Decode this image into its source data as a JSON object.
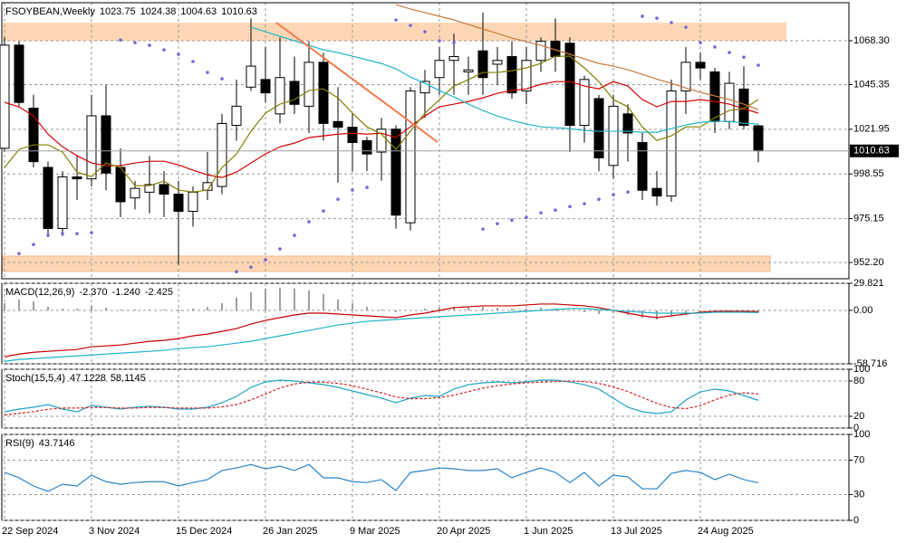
{
  "chart_data": [
    {
      "type": "candlestick",
      "title": "FSOYBEAN,Weekly",
      "categories": [
        "22 Sep 2024",
        null,
        null,
        null,
        null,
        null,
        "3 Nov 2024",
        null,
        null,
        null,
        null,
        null,
        "15 Dec 2024",
        null,
        null,
        null,
        null,
        null,
        "26 Jan 2025",
        null,
        null,
        null,
        null,
        null,
        "9 Mar 2025",
        null,
        null,
        null,
        null,
        null,
        "20 Apr 2025",
        null,
        null,
        null,
        null,
        null,
        "1 Jun 2025",
        null,
        null,
        null,
        null,
        null,
        "13 Jul 2025",
        null,
        null,
        null,
        null,
        null,
        "24 Aug 2025",
        null,
        null,
        null,
        null
      ],
      "open": [
        1012,
        1066,
        1033,
        1002,
        970,
        997,
        996,
        1029,
        1002,
        986,
        989,
        993,
        988,
        979,
        990,
        992,
        1024,
        1044,
        1048,
        1030,
        1047,
        1034,
        1057,
        1026,
        1023,
        1016,
        1010,
        1022,
        973,
        1041,
        1049,
        1058,
        1052,
        1063,
        1056,
        1060,
        1042,
        1058,
        1068,
        1067,
        1024,
        1038,
        1003,
        1030,
        1015,
        991,
        987,
        1042,
        1057,
        1052,
        1026,
        1043,
        1023.75
      ],
      "high": [
        1070,
        1068,
        1040,
        1005,
        1000,
        1008,
        1040,
        1045,
        1012,
        995,
        1008,
        1000,
        995,
        992,
        1010,
        1030,
        1048,
        1080,
        1065,
        1070,
        1060,
        1068,
        1062,
        1044,
        1030,
        1018,
        1028,
        1024,
        1044,
        1053,
        1065,
        1072,
        1060,
        1083,
        1065,
        1068,
        1065,
        1070,
        1080,
        1070,
        1050,
        1040,
        1040,
        1035,
        1020,
        1000,
        1048,
        1065,
        1062,
        1054,
        1052,
        1055,
        1024.38
      ],
      "low": [
        1010,
        1034,
        1002,
        967,
        966,
        985,
        992,
        990,
        976,
        980,
        978,
        976,
        951,
        971,
        985,
        988,
        1016,
        1042,
        1036,
        1025,
        1030,
        1020,
        1016,
        994,
        1000,
        1000,
        995,
        970,
        969,
        1028,
        1040,
        1040,
        1040,
        1040,
        1045,
        1038,
        1035,
        1052,
        1052,
        1010,
        1015,
        1000,
        996,
        1005,
        985,
        982,
        984,
        1030,
        1048,
        1020,
        1022,
        1022,
        1004.63
      ],
      "close": [
        1066,
        1036,
        1005,
        970,
        997,
        996,
        1029,
        999,
        984,
        991,
        993,
        988,
        979,
        989,
        994,
        1025,
        1034,
        1055,
        1041,
        1049,
        1035,
        1057,
        1025,
        1023,
        1015,
        1009,
        1022,
        977,
        1042,
        1047,
        1058,
        1060,
        1053,
        1049,
        1058,
        1041,
        1058,
        1068,
        1060,
        1024,
        1048,
        1007,
        1034,
        1020,
        990,
        987,
        1042,
        1057,
        1054,
        1026,
        1046,
        1024,
        1010.63
      ],
      "series": [
        {
          "style": "line",
          "color": "#d40000",
          "values": [
            1036.0,
            1033.7,
            1028.9,
            1019.4,
            1012.8,
            1008.1,
            1004.3,
            1002.9,
            1002.9,
            1004.3,
            1005.2,
            1005.2,
            1003.3,
            1000.5,
            998.1,
            996.7,
            999.5,
            1004.3,
            1009.0,
            1012.8,
            1014.7,
            1017.6,
            1018.5,
            1019.4,
            1019.9,
            1019.4,
            1019.9,
            1017.6,
            1023.2,
            1028.9,
            1033.7,
            1035.1,
            1036.5,
            1038.4,
            1040.8,
            1042.2,
            1043.1,
            1045.5,
            1046.9,
            1046.9,
            1044.6,
            1043.1,
            1046.9,
            1044.6,
            1037.5,
            1033.7,
            1036.5,
            1036.5,
            1037.5,
            1036.5,
            1035.1,
            1032.7,
            1030.4
          ]
        },
        {
          "style": "line",
          "color": "#808000",
          "values": [
            1001.9,
            1011.4,
            1013.8,
            1013.8,
            1010.0,
            999.5,
            997.2,
            1004.3,
            1001.9,
            992.4,
            992.4,
            994.8,
            990.1,
            989.1,
            990.1,
            1001.9,
            1009.0,
            1020.9,
            1030.4,
            1035.1,
            1037.5,
            1042.2,
            1043.1,
            1038.4,
            1030.4,
            1023.2,
            1019.4,
            1011.4,
            1020.9,
            1030.4,
            1037.5,
            1044.6,
            1047.9,
            1051.7,
            1051.7,
            1052.6,
            1054.1,
            1056.4,
            1060.2,
            1060.2,
            1054.1,
            1046.9,
            1037.5,
            1033.7,
            1023.2,
            1016.1,
            1018.5,
            1023.2,
            1023.2,
            1028.0,
            1031.8,
            1032.7,
            1037.5
          ]
        },
        {
          "style": "line",
          "color": "#20b4c4",
          "values": [
            null,
            null,
            null,
            null,
            null,
            null,
            null,
            null,
            null,
            null,
            null,
            null,
            null,
            null,
            null,
            null,
            null,
            1075.4,
            1073.0,
            1070.6,
            1068.3,
            1065.9,
            1063.5,
            1062.1,
            1060.2,
            1058.3,
            1056.4,
            1053.6,
            1049.3,
            1046.0,
            1042.2,
            1038.9,
            1035.1,
            1031.8,
            1028.9,
            1026.6,
            1024.7,
            1023.2,
            1022.8,
            1022.3,
            1021.3,
            1020.9,
            1020.9,
            1020.9,
            1020.4,
            1020.4,
            1022.3,
            1024.2,
            1025.6,
            1026.1,
            1026.1,
            1025.1,
            1024.7
          ]
        },
        {
          "style": "line",
          "color": "#c8783c",
          "values": [
            null,
            null,
            null,
            null,
            null,
            null,
            null,
            null,
            null,
            null,
            null,
            null,
            null,
            null,
            null,
            null,
            null,
            null,
            null,
            null,
            null,
            null,
            null,
            null,
            null,
            null,
            null,
            1087.2,
            1084.9,
            1083.0,
            1081.1,
            1079.2,
            1076.8,
            1074.4,
            1072.1,
            1069.7,
            1067.8,
            1065.9,
            1063.5,
            1061.2,
            1058.8,
            1056.4,
            1055.0,
            1053.1,
            1050.7,
            1048.2,
            1046.0,
            1043.6,
            1041.3,
            1039.4,
            1037.5,
            1035.1,
            1032.2
          ]
        },
        {
          "style": "dots",
          "color": "#7468d8",
          "values": [
            null,
            956.9,
            961.6,
            966.4,
            967.3,
            967.3,
            967.8,
            null,
            1068.7,
            1067.3,
            1065.9,
            1063.5,
            1061.2,
            1057.4,
            1051.7,
            1048.4,
            947.4,
            949.8,
            953.6,
            959.3,
            966.4,
            973.5,
            979.2,
            985.3,
            990.1,
            991.5,
            null,
            1079.2,
            1076.3,
            1073.0,
            1068.3,
            1067.3,
            null,
            969.7,
            972.5,
            974.4,
            975.8,
            978.2,
            979.6,
            981.5,
            983.0,
            985.3,
            987.7,
            989.1,
            1081.1,
            1080.1,
            1077.8,
            1075.4,
            1067.3,
            1065.0,
            1062.1,
            1059.7,
            1055.5
          ]
        }
      ],
      "ylim": [
        943.7,
        1088.2
      ],
      "yticks": [
        {
          "value": 1068.3,
          "label": "1068.30"
        },
        1045.35,
        1021.95,
        998.55,
        975.15,
        {
          "value": 952.2,
          "label": "952.20"
        }
      ],
      "grid": true
    },
    {
      "type": "indicator",
      "title": "MACD(12,26,9)",
      "header_values": [
        "-2.370",
        "-1.240",
        "-2.425"
      ],
      "series": [
        {
          "style": "histogram",
          "color": "#a0a0a0",
          "values": [
            8,
            12,
            10,
            4,
            2,
            2,
            5,
            3,
            1,
            1,
            1,
            1,
            1,
            2,
            4,
            8,
            14,
            20,
            24,
            25,
            24,
            22,
            18,
            12,
            8,
            4,
            1,
            -2,
            0,
            2,
            3,
            4,
            4,
            4,
            3,
            2,
            2,
            3,
            2,
            0,
            -2,
            -4,
            -3,
            -5,
            -8,
            -10,
            -6,
            -3,
            -2,
            -2,
            -2,
            -1,
            -2.37
          ]
        },
        {
          "style": "line",
          "color": "#c80000",
          "values": [
            -51,
            -48,
            -46,
            -45,
            -44,
            -43,
            -40,
            -39,
            -38,
            -36,
            -34,
            -33,
            -31,
            -28,
            -26,
            -23,
            -20,
            -15,
            -11,
            -8,
            -5,
            -3,
            -3,
            -4,
            -5,
            -6,
            -7,
            -8,
            -5,
            -3,
            0,
            3,
            4,
            5,
            5,
            5,
            6,
            7,
            7,
            6,
            5,
            3,
            0,
            -3,
            -6,
            -8,
            -6,
            -4,
            -2,
            -1,
            -1,
            -1,
            -1.24
          ]
        },
        {
          "style": "line",
          "color": "#20b4c8",
          "values": [
            -56,
            -54,
            -53,
            -52,
            -51,
            -50,
            -49,
            -48,
            -47,
            -46,
            -45,
            -44,
            -42,
            -41,
            -40,
            -38,
            -36,
            -34,
            -31,
            -28,
            -25,
            -22,
            -19,
            -16,
            -14,
            -12,
            -11,
            -10,
            -9,
            -8,
            -7,
            -6,
            -5,
            -4,
            -3,
            -2,
            -1,
            0,
            1,
            2,
            2,
            1,
            0,
            -1,
            -2,
            -3,
            -3,
            -3,
            -3,
            -2,
            -2,
            -2,
            -2.425
          ]
        }
      ],
      "ylim": [
        -58.716,
        29.821
      ],
      "yticks": [
        29.821,
        {
          "value": 0,
          "label": "0.00"
        },
        -58.716
      ],
      "grid": true
    },
    {
      "type": "indicator",
      "title": "Stoch(15,5,4)",
      "series": [
        {
          "style": "line",
          "color": "#20a4c4",
          "values": [
            27.7,
            32.3,
            35.4,
            40,
            32.3,
            27.7,
            38.5,
            35.4,
            32.3,
            35.4,
            36.9,
            35.4,
            32.3,
            32.3,
            35.4,
            43.1,
            53.8,
            69.2,
            78.5,
            81.5,
            80,
            76.9,
            73.8,
            69.2,
            63.1,
            56.9,
            50.8,
            43.1,
            50.8,
            55.4,
            53.8,
            66.2,
            73.8,
            76.9,
            78.5,
            76.9,
            78.5,
            81.5,
            81.5,
            78.5,
            73.8,
            66.2,
            50.8,
            35.4,
            27.7,
            24.6,
            27.7,
            47.7,
            61.5,
            66.2,
            63.1,
            55.4,
            47.1228
          ]
        },
        {
          "style": "dashed",
          "color": "#d42020",
          "values": [
            22,
            25,
            28,
            32,
            34,
            34,
            35,
            35,
            34,
            34,
            35,
            35,
            34,
            34,
            34,
            36,
            40,
            48,
            58,
            68,
            75,
            78,
            78,
            76,
            72,
            66,
            60,
            53,
            50,
            50,
            52,
            56,
            62,
            68,
            72,
            75,
            77,
            78,
            79,
            80,
            79,
            76,
            70,
            62,
            52,
            42,
            35,
            33,
            38,
            48,
            56,
            60,
            58.1145
          ]
        }
      ],
      "ylim": [
        0,
        100
      ],
      "yticks": [
        100,
        80,
        20,
        0
      ],
      "grid": true
    },
    {
      "type": "indicator",
      "title": "RSI(9)",
      "series": [
        {
          "style": "line",
          "color": "#2a84c8",
          "values": [
            55.8,
            49.5,
            40,
            33.7,
            42,
            40,
            52.6,
            45,
            42,
            44,
            45,
            45,
            40,
            44,
            47.4,
            58,
            61,
            65,
            60,
            63,
            58,
            65,
            49.5,
            49.5,
            45,
            44,
            47.4,
            34.7,
            55.8,
            58,
            61,
            60,
            58,
            58,
            60,
            49.5,
            55.8,
            61,
            55.8,
            44,
            55.8,
            40,
            52.6,
            50.5,
            36.8,
            36.8,
            54.7,
            58,
            55.8,
            47.4,
            53.7,
            47.4,
            43.7146
          ]
        }
      ],
      "ylim": [
        0,
        100
      ],
      "yticks": [
        100,
        70,
        30,
        0
      ],
      "grid": true
    }
  ]
}
